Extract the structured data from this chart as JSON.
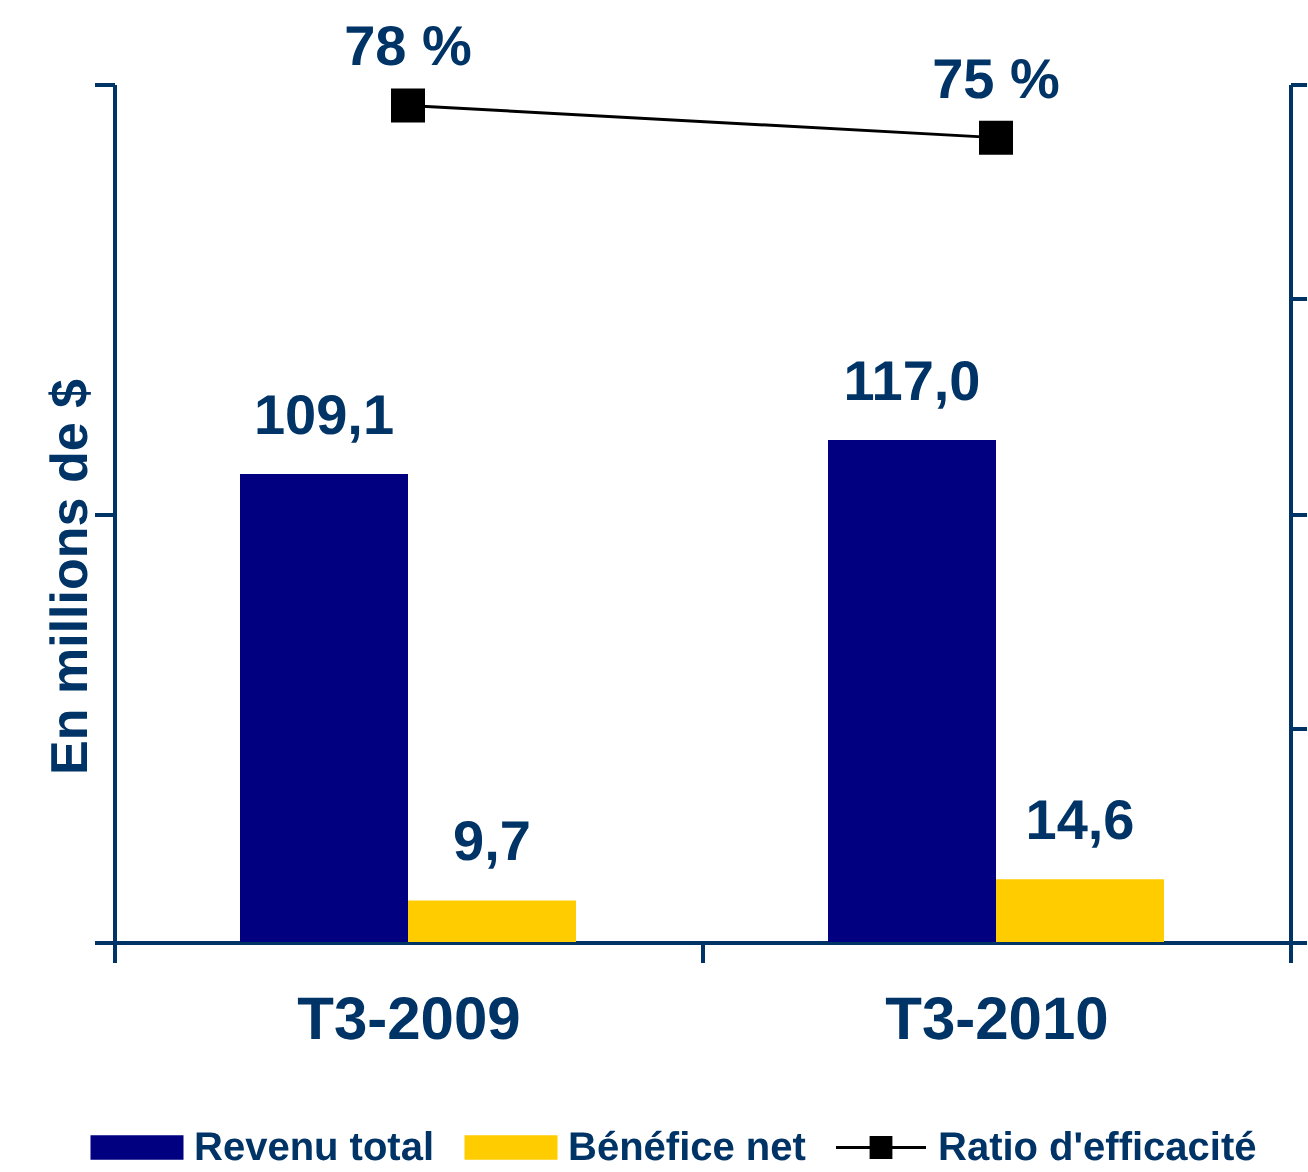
{
  "chart_data": {
    "type": "bar",
    "categories": [
      "T3-2009",
      "T3-2010"
    ],
    "ylabel": "En millions de $",
    "series": [
      {
        "name": "Revenu total",
        "color": "#000080",
        "values": [
          109.1,
          117.0
        ],
        "value_labels": [
          "109,1",
          "117,0"
        ]
      },
      {
        "name": "Bénéfice net",
        "color": "#ffcc00",
        "values": [
          9.7,
          14.6
        ],
        "value_labels": [
          "9,7",
          "14,6"
        ]
      },
      {
        "name": "Ratio d'efficacité",
        "type": "line",
        "axis": "y2",
        "color": "#000000",
        "values": [
          78,
          75
        ],
        "value_labels": [
          "78 %",
          "75 %"
        ]
      }
    ],
    "ylim": [
      0,
      200
    ],
    "yticks": [
      {
        "value": 0,
        "label": null
      },
      {
        "value": 100,
        "label": null
      },
      {
        "value": 200,
        "label": null
      }
    ],
    "y2lim": [
      0,
      80
    ],
    "y2ticks": [
      {
        "value": 0,
        "label": null
      },
      {
        "value": 20,
        "label": null
      },
      {
        "value": 40,
        "label": null
      },
      {
        "value": 60,
        "label": null
      },
      {
        "value": 80,
        "label": null
      }
    ],
    "tick_labels": "x",
    "marker": "square",
    "legend": "bottom"
  }
}
